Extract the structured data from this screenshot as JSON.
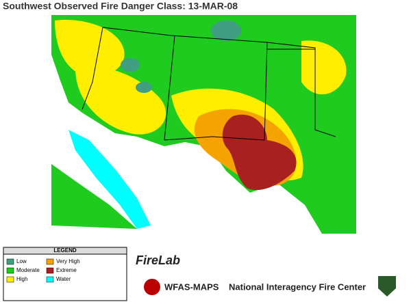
{
  "header": {
    "title": "Southwest Observed Fire Danger Class: 13-MAR-08"
  },
  "legend": {
    "title": "LEGEND",
    "items": [
      {
        "label": "Low",
        "color": "#3f9f80"
      },
      {
        "label": "Moderate",
        "color": "#1ecb1e"
      },
      {
        "label": "High",
        "color": "#ffee00"
      },
      {
        "label": "Very High",
        "color": "#f4a300"
      },
      {
        "label": "Extreme",
        "color": "#a82020"
      },
      {
        "label": "Water",
        "color": "#00ffff"
      }
    ]
  },
  "footer": {
    "firelab": "FireLab",
    "wfas": "WFAS-MAPS",
    "center": "National Interagency Fire Center"
  }
}
